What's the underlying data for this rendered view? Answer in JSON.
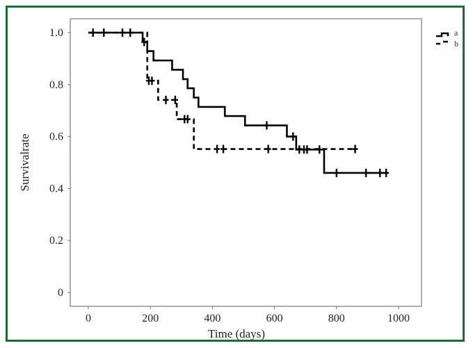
{
  "chart_data": {
    "type": "line",
    "subtype": "kaplan-meier step",
    "title": "",
    "xlabel": "Time (days)",
    "ylabel": "Survivalrate",
    "xlim": [
      -55,
      1055
    ],
    "ylim": [
      -0.06,
      1.06
    ],
    "xticks": [
      "0",
      "200",
      "400",
      "600",
      "800",
      "1000"
    ],
    "yticks": [
      "0",
      "0.2",
      "0.4",
      "0.6",
      "0.8",
      "1.0"
    ],
    "grid": false,
    "legend_position": "right-top",
    "legend": [
      "a",
      "b"
    ],
    "series": [
      {
        "name": "a",
        "style": "solid",
        "steps": [
          [
            0,
            1.0
          ],
          [
            175,
            0.964
          ],
          [
            190,
            0.929
          ],
          [
            210,
            0.893
          ],
          [
            270,
            0.857
          ],
          [
            305,
            0.821
          ],
          [
            320,
            0.786
          ],
          [
            340,
            0.75
          ],
          [
            355,
            0.714
          ],
          [
            440,
            0.679
          ],
          [
            505,
            0.643
          ],
          [
            640,
            0.6
          ],
          [
            670,
            0.55
          ],
          [
            760,
            0.46
          ],
          [
            965,
            0.46
          ]
        ],
        "censored": [
          15,
          50,
          110,
          135,
          180,
          575,
          660,
          680,
          695,
          705,
          745,
          800,
          895,
          940,
          960
        ]
      },
      {
        "name": "b",
        "style": "dashed",
        "steps": [
          [
            0,
            1.0
          ],
          [
            190,
            0.815
          ],
          [
            225,
            0.741
          ],
          [
            285,
            0.667
          ],
          [
            340,
            0.552
          ],
          [
            865,
            0.552
          ]
        ],
        "censored": [
          195,
          205,
          250,
          280,
          310,
          320,
          415,
          435,
          580,
          860
        ]
      }
    ]
  },
  "axes": {
    "x_title": "Time (days)",
    "y_title": "Survivalrate",
    "x_ticks": [
      "0",
      "200",
      "400",
      "600",
      "800",
      "1000"
    ],
    "y_ticks": [
      "0",
      "0.2",
      "0.4",
      "0.6",
      "0.8",
      "1.0"
    ]
  },
  "legend": {
    "items": [
      {
        "label": "a",
        "style": "solid"
      },
      {
        "label": "b",
        "style": "dashed"
      }
    ]
  },
  "colors": {
    "border": "#1e6b3a",
    "line": "#000000",
    "axis": "#777777"
  }
}
